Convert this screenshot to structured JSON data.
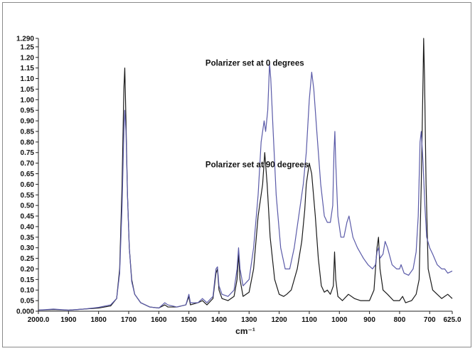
{
  "chart_data": {
    "type": "line",
    "title": "",
    "xlabel": "cm⁻¹",
    "ylabel": "",
    "xlim": [
      2000,
      625
    ],
    "ylim": [
      0,
      1.29
    ],
    "x_ticks": [
      2000,
      1900,
      1800,
      1700,
      1600,
      1500,
      1400,
      1300,
      1200,
      1100,
      1000,
      900,
      800,
      700,
      625
    ],
    "x_tick_labels": [
      "2000.0",
      "1900",
      "1800",
      "1700",
      "1600",
      "1500",
      "1400",
      "1300",
      "1200",
      "1100",
      "1000",
      "900",
      "800",
      "700",
      "625.0"
    ],
    "y_ticks": [
      0,
      0.05,
      0.1,
      0.15,
      0.2,
      0.25,
      0.3,
      0.35,
      0.4,
      0.45,
      0.5,
      0.55,
      0.6,
      0.65,
      0.7,
      0.75,
      0.8,
      0.85,
      0.9,
      0.95,
      1.0,
      1.05,
      1.1,
      1.15,
      1.2,
      1.25,
      1.29
    ],
    "y_tick_labels": [
      "0.000",
      "0.05",
      "0.10",
      "0.15",
      "0.20",
      "0.25",
      "0.30",
      "0.35",
      "0.40",
      "0.45",
      "0.50",
      "0.55",
      "0.60",
      "0.65",
      "0.70",
      "0.75",
      "0.80",
      "0.85",
      "0.90",
      "0.95",
      "1.00",
      "1.05",
      "1.10",
      "1.15",
      "1.20",
      "1.25",
      "1.290"
    ],
    "grid": false,
    "annotations": [
      {
        "text": "Polarizer set at 0 degrees",
        "x": 1445,
        "y": 1.16
      },
      {
        "text": "Polarizer set at 90 degrees",
        "x": 1445,
        "y": 0.68
      }
    ],
    "series": [
      {
        "color": "#1a1a1a",
        "points": [
          [
            2000,
            0.005
          ],
          [
            1950,
            0.008
          ],
          [
            1900,
            0.005
          ],
          [
            1850,
            0.01
          ],
          [
            1800,
            0.015
          ],
          [
            1760,
            0.025
          ],
          [
            1740,
            0.06
          ],
          [
            1730,
            0.2
          ],
          [
            1722,
            0.6
          ],
          [
            1716,
            1.05
          ],
          [
            1713,
            1.15
          ],
          [
            1709,
            0.9
          ],
          [
            1704,
            0.55
          ],
          [
            1698,
            0.3
          ],
          [
            1690,
            0.15
          ],
          [
            1680,
            0.08
          ],
          [
            1660,
            0.04
          ],
          [
            1630,
            0.02
          ],
          [
            1600,
            0.015
          ],
          [
            1580,
            0.03
          ],
          [
            1570,
            0.02
          ],
          [
            1540,
            0.02
          ],
          [
            1510,
            0.03
          ],
          [
            1500,
            0.07
          ],
          [
            1495,
            0.03
          ],
          [
            1470,
            0.04
          ],
          [
            1455,
            0.05
          ],
          [
            1440,
            0.03
          ],
          [
            1420,
            0.06
          ],
          [
            1410,
            0.18
          ],
          [
            1405,
            0.2
          ],
          [
            1400,
            0.1
          ],
          [
            1390,
            0.06
          ],
          [
            1370,
            0.05
          ],
          [
            1350,
            0.07
          ],
          [
            1340,
            0.15
          ],
          [
            1335,
            0.27
          ],
          [
            1330,
            0.15
          ],
          [
            1320,
            0.07
          ],
          [
            1300,
            0.09
          ],
          [
            1285,
            0.2
          ],
          [
            1270,
            0.45
          ],
          [
            1255,
            0.6
          ],
          [
            1248,
            0.75
          ],
          [
            1240,
            0.6
          ],
          [
            1230,
            0.35
          ],
          [
            1215,
            0.15
          ],
          [
            1200,
            0.08
          ],
          [
            1185,
            0.07
          ],
          [
            1175,
            0.08
          ],
          [
            1160,
            0.1
          ],
          [
            1140,
            0.2
          ],
          [
            1125,
            0.33
          ],
          [
            1115,
            0.48
          ],
          [
            1110,
            0.6
          ],
          [
            1100,
            0.7
          ],
          [
            1092,
            0.65
          ],
          [
            1080,
            0.45
          ],
          [
            1070,
            0.25
          ],
          [
            1060,
            0.12
          ],
          [
            1050,
            0.09
          ],
          [
            1040,
            0.1
          ],
          [
            1030,
            0.08
          ],
          [
            1020,
            0.12
          ],
          [
            1016,
            0.28
          ],
          [
            1012,
            0.15
          ],
          [
            1005,
            0.07
          ],
          [
            990,
            0.05
          ],
          [
            970,
            0.08
          ],
          [
            950,
            0.06
          ],
          [
            930,
            0.05
          ],
          [
            900,
            0.05
          ],
          [
            885,
            0.1
          ],
          [
            875,
            0.3
          ],
          [
            870,
            0.35
          ],
          [
            865,
            0.2
          ],
          [
            855,
            0.1
          ],
          [
            840,
            0.08
          ],
          [
            820,
            0.05
          ],
          [
            800,
            0.05
          ],
          [
            790,
            0.07
          ],
          [
            780,
            0.04
          ],
          [
            760,
            0.05
          ],
          [
            745,
            0.08
          ],
          [
            735,
            0.15
          ],
          [
            728,
            0.6
          ],
          [
            722,
            1.1
          ],
          [
            720,
            1.29
          ],
          [
            717,
            1.1
          ],
          [
            712,
            0.6
          ],
          [
            705,
            0.2
          ],
          [
            690,
            0.1
          ],
          [
            675,
            0.08
          ],
          [
            660,
            0.06
          ],
          [
            650,
            0.07
          ],
          [
            640,
            0.08
          ],
          [
            625,
            0.06
          ]
        ]
      },
      {
        "color": "#5a5aa8",
        "points": [
          [
            2000,
            0.005
          ],
          [
            1950,
            0.01
          ],
          [
            1900,
            0.005
          ],
          [
            1850,
            0.01
          ],
          [
            1800,
            0.018
          ],
          [
            1760,
            0.03
          ],
          [
            1740,
            0.06
          ],
          [
            1730,
            0.18
          ],
          [
            1722,
            0.5
          ],
          [
            1716,
            0.85
          ],
          [
            1713,
            0.95
          ],
          [
            1709,
            0.85
          ],
          [
            1704,
            0.55
          ],
          [
            1698,
            0.3
          ],
          [
            1690,
            0.14
          ],
          [
            1680,
            0.08
          ],
          [
            1660,
            0.04
          ],
          [
            1630,
            0.02
          ],
          [
            1600,
            0.015
          ],
          [
            1580,
            0.04
          ],
          [
            1570,
            0.03
          ],
          [
            1540,
            0.02
          ],
          [
            1510,
            0.03
          ],
          [
            1500,
            0.08
          ],
          [
            1495,
            0.04
          ],
          [
            1470,
            0.04
          ],
          [
            1455,
            0.06
          ],
          [
            1440,
            0.04
          ],
          [
            1420,
            0.07
          ],
          [
            1410,
            0.2
          ],
          [
            1405,
            0.21
          ],
          [
            1400,
            0.12
          ],
          [
            1390,
            0.08
          ],
          [
            1370,
            0.07
          ],
          [
            1350,
            0.1
          ],
          [
            1340,
            0.2
          ],
          [
            1335,
            0.3
          ],
          [
            1330,
            0.2
          ],
          [
            1320,
            0.12
          ],
          [
            1300,
            0.15
          ],
          [
            1285,
            0.3
          ],
          [
            1270,
            0.55
          ],
          [
            1260,
            0.8
          ],
          [
            1250,
            0.9
          ],
          [
            1245,
            0.85
          ],
          [
            1238,
            0.95
          ],
          [
            1232,
            1.17
          ],
          [
            1228,
            1.1
          ],
          [
            1220,
            0.85
          ],
          [
            1210,
            0.55
          ],
          [
            1195,
            0.3
          ],
          [
            1180,
            0.2
          ],
          [
            1165,
            0.2
          ],
          [
            1150,
            0.3
          ],
          [
            1130,
            0.5
          ],
          [
            1120,
            0.6
          ],
          [
            1110,
            0.75
          ],
          [
            1100,
            1.0
          ],
          [
            1092,
            1.13
          ],
          [
            1085,
            1.05
          ],
          [
            1075,
            0.85
          ],
          [
            1062,
            0.6
          ],
          [
            1050,
            0.45
          ],
          [
            1040,
            0.42
          ],
          [
            1030,
            0.42
          ],
          [
            1022,
            0.5
          ],
          [
            1018,
            0.75
          ],
          [
            1015,
            0.85
          ],
          [
            1012,
            0.7
          ],
          [
            1005,
            0.45
          ],
          [
            995,
            0.35
          ],
          [
            985,
            0.35
          ],
          [
            975,
            0.42
          ],
          [
            968,
            0.45
          ],
          [
            955,
            0.35
          ],
          [
            940,
            0.3
          ],
          [
            920,
            0.25
          ],
          [
            905,
            0.22
          ],
          [
            890,
            0.2
          ],
          [
            880,
            0.22
          ],
          [
            875,
            0.28
          ],
          [
            870,
            0.3
          ],
          [
            865,
            0.25
          ],
          [
            855,
            0.27
          ],
          [
            848,
            0.33
          ],
          [
            840,
            0.3
          ],
          [
            825,
            0.22
          ],
          [
            810,
            0.2
          ],
          [
            800,
            0.2
          ],
          [
            795,
            0.22
          ],
          [
            785,
            0.18
          ],
          [
            770,
            0.17
          ],
          [
            755,
            0.2
          ],
          [
            745,
            0.28
          ],
          [
            738,
            0.45
          ],
          [
            732,
            0.8
          ],
          [
            728,
            0.85
          ],
          [
            722,
            0.7
          ],
          [
            716,
            0.5
          ],
          [
            710,
            0.35
          ],
          [
            700,
            0.3
          ],
          [
            690,
            0.27
          ],
          [
            675,
            0.22
          ],
          [
            660,
            0.2
          ],
          [
            650,
            0.2
          ],
          [
            640,
            0.18
          ],
          [
            625,
            0.19
          ]
        ]
      }
    ]
  }
}
